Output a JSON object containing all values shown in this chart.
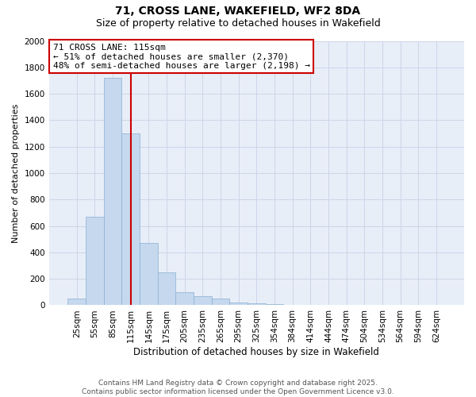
{
  "title": "71, CROSS LANE, WAKEFIELD, WF2 8DA",
  "subtitle": "Size of property relative to detached houses in Wakefield",
  "xlabel": "Distribution of detached houses by size in Wakefield",
  "ylabel": "Number of detached properties",
  "categories": [
    "25sqm",
    "55sqm",
    "85sqm",
    "115sqm",
    "145sqm",
    "175sqm",
    "205sqm",
    "235sqm",
    "265sqm",
    "295sqm",
    "325sqm",
    "354sqm",
    "384sqm",
    "414sqm",
    "444sqm",
    "474sqm",
    "504sqm",
    "534sqm",
    "564sqm",
    "594sqm",
    "624sqm"
  ],
  "values": [
    50,
    670,
    1720,
    1300,
    470,
    250,
    100,
    70,
    50,
    20,
    15,
    10,
    5,
    0,
    0,
    0,
    0,
    0,
    0,
    0,
    0
  ],
  "bar_color": "#c5d8ee",
  "bar_edge_color": "#8ab0d0",
  "vline_x": 3,
  "vline_color": "#cc0000",
  "annotation_text": "71 CROSS LANE: 115sqm\n← 51% of detached houses are smaller (2,370)\n48% of semi-detached houses are larger (2,198) →",
  "annotation_box_facecolor": "#ffffff",
  "annotation_box_edgecolor": "#cc0000",
  "annotation_fontsize": 8,
  "ylim": [
    0,
    2000
  ],
  "yticks": [
    0,
    200,
    400,
    600,
    800,
    1000,
    1200,
    1400,
    1600,
    1800,
    2000
  ],
  "title_fontsize": 10,
  "subtitle_fontsize": 9,
  "xlabel_fontsize": 8.5,
  "ylabel_fontsize": 8,
  "tick_fontsize": 7.5,
  "grid_color": "#ccd6e8",
  "background_color": "#e8eef8",
  "footer_line1": "Contains HM Land Registry data © Crown copyright and database right 2025.",
  "footer_line2": "Contains public sector information licensed under the Open Government Licence v3.0.",
  "footer_fontsize": 6.5
}
